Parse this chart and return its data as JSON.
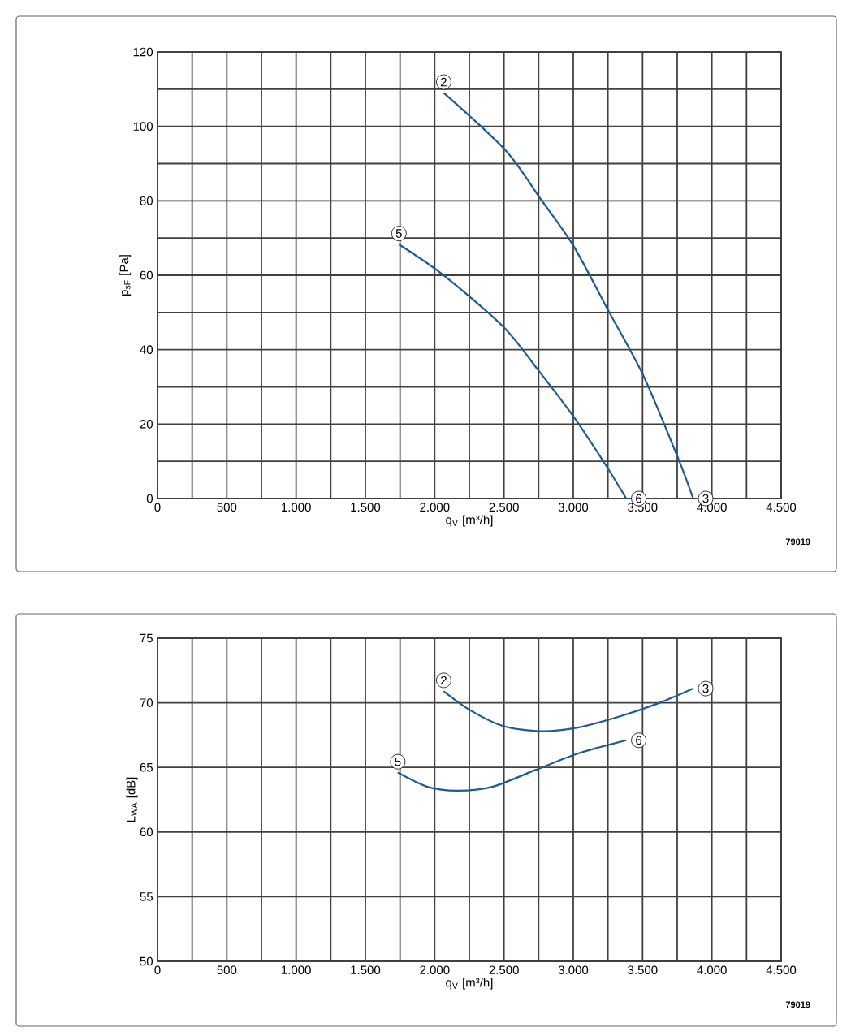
{
  "chart_data": [
    {
      "type": "line",
      "xlabel": "q$_{V}$ [m³/h]",
      "ylabel": "p$_{sF}$ [Pa]",
      "xlim": [
        0,
        4500
      ],
      "ylim": [
        0,
        120
      ],
      "xticks": [
        0,
        {
          "value": 250,
          "label": null
        },
        500,
        {
          "value": 750,
          "label": null
        },
        {
          "value": 1000,
          "label": "1.000"
        },
        {
          "value": 1250,
          "label": null
        },
        {
          "value": 1500,
          "label": "1.500"
        },
        {
          "value": 1750,
          "label": null
        },
        {
          "value": 2000,
          "label": "2.000"
        },
        {
          "value": 2250,
          "label": null
        },
        {
          "value": 2500,
          "label": "2.500"
        },
        {
          "value": 2750,
          "label": null
        },
        {
          "value": 3000,
          "label": "3.000"
        },
        {
          "value": 3250,
          "label": null
        },
        {
          "value": 3500,
          "label": "3.500"
        },
        {
          "value": 3750,
          "label": null
        },
        {
          "value": 4000,
          "label": "4.000"
        },
        {
          "value": 4250,
          "label": null
        },
        {
          "value": 4500,
          "label": "4.500"
        }
      ],
      "yticks": [
        0,
        {
          "value": 10,
          "label": null
        },
        20,
        {
          "value": 30,
          "label": null
        },
        40,
        {
          "value": 50,
          "label": null
        },
        60,
        {
          "value": 70,
          "label": null
        },
        80,
        {
          "value": 90,
          "label": null
        },
        100,
        {
          "value": 110,
          "label": null
        },
        120
      ],
      "grid": true,
      "marker": "none",
      "line_style": "solid",
      "series": [
        {
          "color": "#1f5a96",
          "x": [
            2065,
            2513,
            2766,
            3000,
            3253,
            3506,
            3760,
            3865
          ],
          "values": [
            109,
            93.5,
            80.4,
            68,
            50.5,
            33,
            10.5,
            0
          ]
        },
        {
          "color": "#1f5a96",
          "x": [
            1742,
            2065,
            2494,
            2747,
            3000,
            3234,
            3382
          ],
          "values": [
            68.3,
            60,
            46.2,
            34.5,
            22.1,
            9,
            0
          ]
        }
      ],
      "annotations": [
        {
          "text": "2",
          "x": 2065,
          "y": 109
        },
        {
          "text": "3",
          "x": 3865,
          "y": 0
        },
        {
          "text": "5",
          "x": 1742,
          "y": 68.3
        },
        {
          "text": "6",
          "x": 3382,
          "y": 0
        },
        "79019"
      ]
    },
    {
      "type": "line",
      "xlabel": "q$_{V}$ [m³/h]",
      "ylabel": "L$_{WA}$ [dB]",
      "xlim": [
        0,
        4500
      ],
      "ylim": [
        50,
        75
      ],
      "xticks": [
        0,
        {
          "value": 250,
          "label": null
        },
        500,
        {
          "value": 750,
          "label": null
        },
        {
          "value": 1000,
          "label": "1.000"
        },
        {
          "value": 1250,
          "label": null
        },
        {
          "value": 1500,
          "label": "1.500"
        },
        {
          "value": 1750,
          "label": null
        },
        {
          "value": 2000,
          "label": "2.000"
        },
        {
          "value": 2250,
          "label": null
        },
        {
          "value": 2500,
          "label": "2.500"
        },
        {
          "value": 2750,
          "label": null
        },
        {
          "value": 3000,
          "label": "3.000"
        },
        {
          "value": 3250,
          "label": null
        },
        {
          "value": 3500,
          "label": "3.500"
        },
        {
          "value": 3750,
          "label": null
        },
        {
          "value": 4000,
          "label": "4.000"
        },
        {
          "value": 4250,
          "label": null
        },
        {
          "value": 4500,
          "label": "4.500"
        }
      ],
      "yticks": [
        50,
        55,
        60,
        65,
        70,
        75
      ],
      "grid": true,
      "marker": "none",
      "line_style": "solid",
      "series": [
        {
          "color": "#1f5a96",
          "x": [
            2065,
            2260,
            2494,
            2766,
            3039,
            3351,
            3623,
            3865
          ],
          "values": [
            70.9,
            69.4,
            68.2,
            67.8,
            68.1,
            69.0,
            70.0,
            71.1
          ]
        },
        {
          "color": "#1f5a96",
          "x": [
            1734,
            1948,
            2162,
            2416,
            2727,
            3039,
            3382
          ],
          "values": [
            64.6,
            63.5,
            63.2,
            63.5,
            64.8,
            66.1,
            67.1
          ]
        }
      ],
      "annotations": [
        {
          "text": "2",
          "x": 2065,
          "y": 70.9
        },
        {
          "text": "3",
          "x": 3865,
          "y": 71.1
        },
        {
          "text": "5",
          "x": 1734,
          "y": 64.6
        },
        {
          "text": "6",
          "x": 3382,
          "y": 67.1
        },
        "79019"
      ]
    }
  ]
}
